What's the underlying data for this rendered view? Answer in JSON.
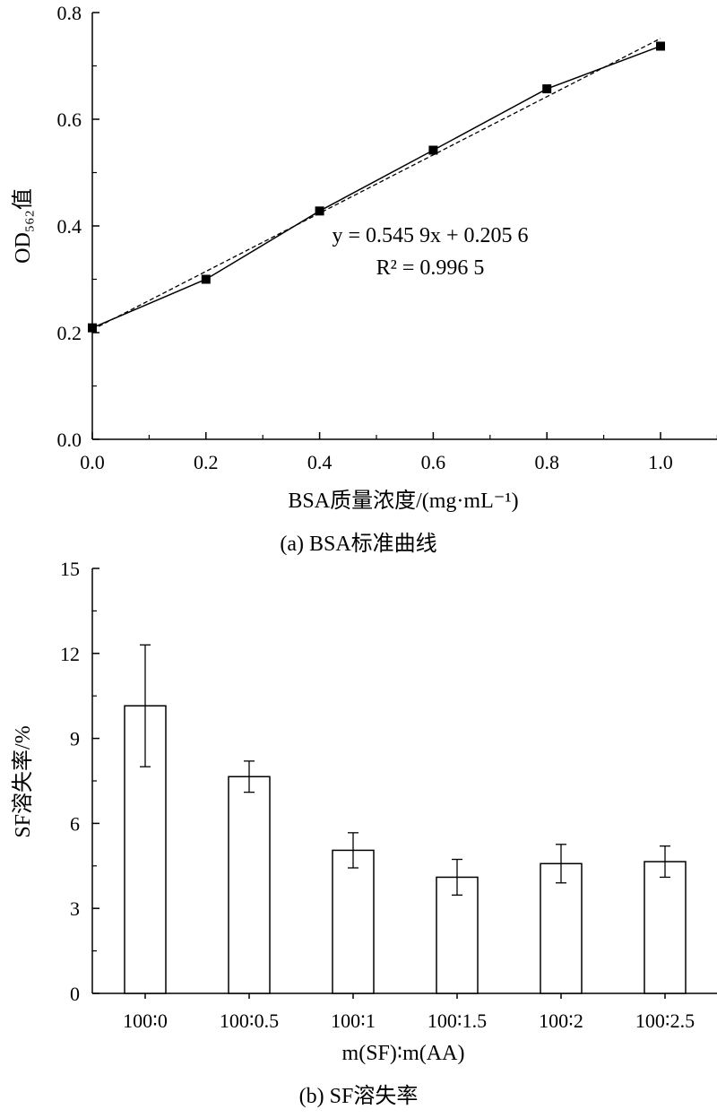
{
  "chart_data": [
    {
      "type": "line",
      "caption": "(a)  BSA标准曲线",
      "xlabel": "BSA质量浓度/(mg·mL⁻¹)",
      "ylabel": "OD₅₆₂值",
      "xlim": [
        0.0,
        1.08
      ],
      "ylim": [
        0.0,
        0.8
      ],
      "x_ticks": [
        "0.0",
        "0.2",
        "0.4",
        "0.6",
        "0.8",
        "1.0"
      ],
      "y_ticks": [
        "0.0",
        "0.2",
        "0.4",
        "0.6",
        "0.8"
      ],
      "x": [
        0.0,
        0.2,
        0.4,
        0.6,
        0.8,
        1.0
      ],
      "y": [
        0.209,
        0.3,
        0.428,
        0.542,
        0.657,
        0.737
      ],
      "fit": {
        "slope": 0.5459,
        "intercept": 0.2056,
        "r2": 0.9965
      },
      "equation_text": "y = 0.545 9x + 0.205 6",
      "r2_text": "R² = 0.996 5",
      "line_style": "solid with square markers; fit line dashed",
      "grid": false
    },
    {
      "type": "bar",
      "caption": "(b)  SF溶失率",
      "xlabel": "m(SF)∶m(AA)",
      "ylabel": "SF溶失率/%",
      "ylim": [
        0,
        15
      ],
      "y_ticks": [
        "0",
        "3",
        "6",
        "9",
        "12",
        "15"
      ],
      "categories": [
        "100∶0",
        "100∶0.5",
        "100∶1",
        "100∶1.5",
        "100∶2",
        "100∶2.5"
      ],
      "values": [
        10.15,
        7.65,
        5.05,
        4.1,
        4.58,
        4.65
      ],
      "errors": [
        2.15,
        0.55,
        0.62,
        0.63,
        0.68,
        0.55
      ],
      "grid": false
    }
  ]
}
